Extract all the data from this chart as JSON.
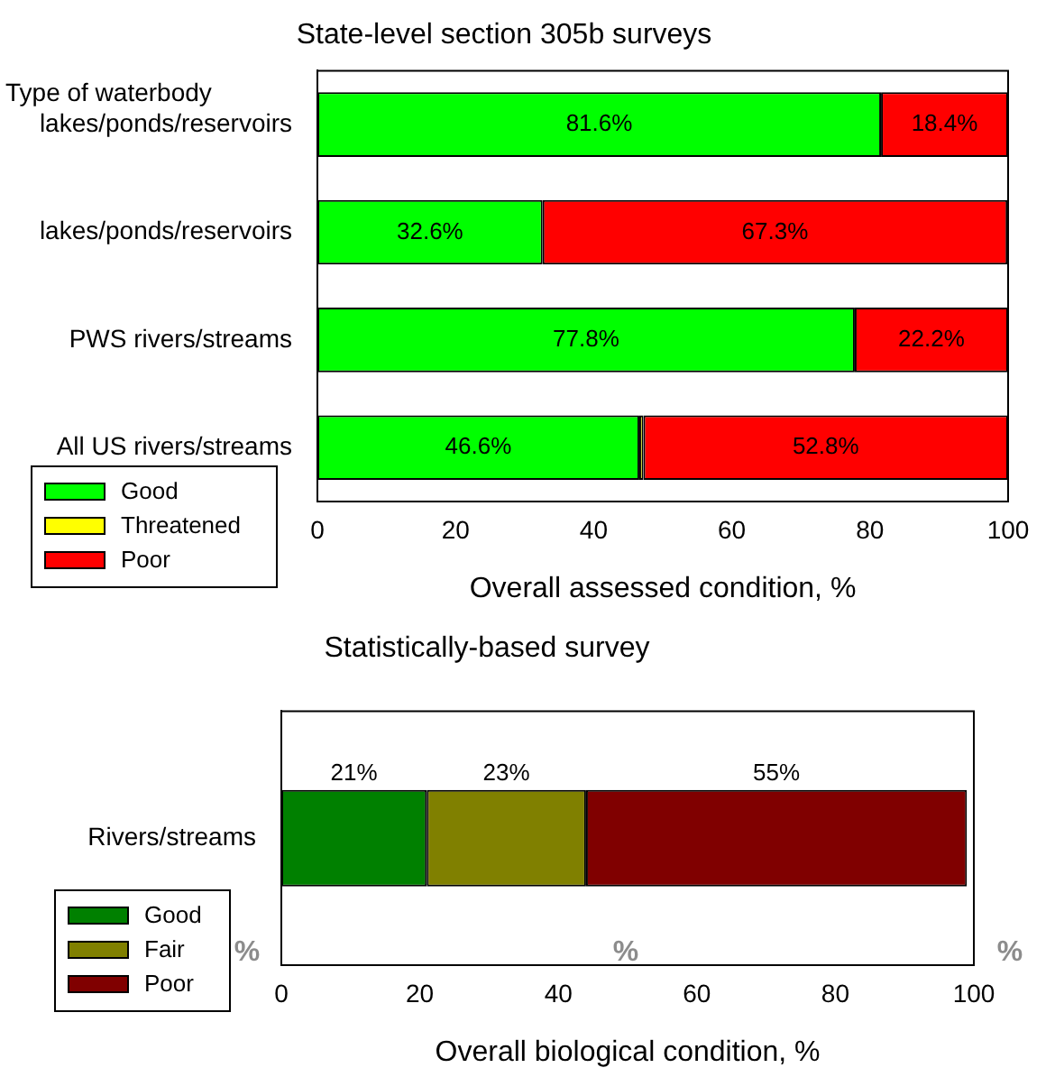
{
  "chart_data": [
    {
      "type": "bar",
      "orientation": "horizontal",
      "stacked": true,
      "title": "State-level section 305b surveys",
      "ylabel": "Type of waterbody",
      "xlabel": "Overall assessed condition, %",
      "categories": [
        "lakes/ponds/reservoirs",
        "lakes/ponds/reservoirs",
        "PWS rivers/streams",
        "All US rivers/streams"
      ],
      "series": [
        {
          "name": "Good",
          "color": "#00ff00",
          "values": [
            81.6,
            32.6,
            77.8,
            46.6
          ],
          "value_labels": [
            "81.6%",
            "32.6%",
            "77.8%",
            "46.6%"
          ]
        },
        {
          "name": "Threatened",
          "color": "#ffff00",
          "values": [
            0,
            0,
            0,
            0.6
          ]
        },
        {
          "name": "Poor",
          "color": "#ff0000",
          "values": [
            18.4,
            67.3,
            22.2,
            52.8
          ],
          "value_labels": [
            "18.4%",
            "67.3%",
            "22.2%",
            "52.8%"
          ]
        }
      ],
      "xlim": [
        0,
        100
      ],
      "xticks": [
        0,
        20,
        40,
        60,
        80,
        100
      ],
      "legend": "bottom left"
    },
    {
      "type": "bar",
      "orientation": "horizontal",
      "stacked": true,
      "title": "Statistically-based survey",
      "xlabel": "Overall biological condition, %",
      "categories": [
        "Rivers/streams"
      ],
      "series": [
        {
          "name": "Good",
          "color": "#008000",
          "values": [
            21
          ],
          "value_labels": [
            "21%"
          ]
        },
        {
          "name": "Fair",
          "color": "#808000",
          "values": [
            23
          ],
          "value_labels": [
            "23%"
          ]
        },
        {
          "name": "Poor",
          "color": "#800000",
          "values": [
            55
          ],
          "value_labels": [
            "55%"
          ]
        }
      ],
      "xlim": [
        0,
        100
      ],
      "xticks": [
        0,
        20,
        40,
        60,
        80,
        100
      ],
      "legend": "bottom left",
      "annotations": [
        "%",
        "%",
        "%"
      ]
    }
  ]
}
